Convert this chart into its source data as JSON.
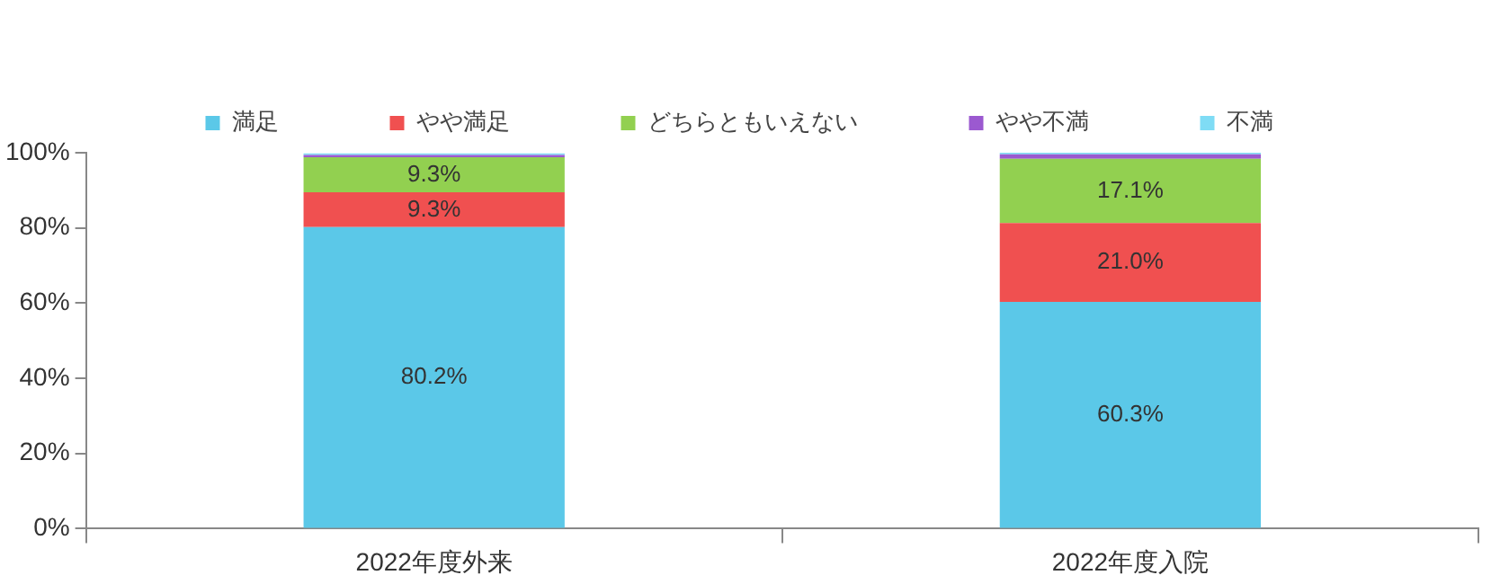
{
  "chart_data": {
    "type": "bar",
    "stacked": true,
    "categories": [
      "2022年度外来",
      "2022年度入院"
    ],
    "series": [
      {
        "name": "満足",
        "color": "#5bc8e8",
        "values": [
          80.2,
          60.3
        ],
        "value_labels": [
          "80.2%",
          "60.3%"
        ]
      },
      {
        "name": "やや満足",
        "color": "#f05050",
        "values": [
          9.3,
          21.0
        ],
        "value_labels": [
          "9.3%",
          "21.0%"
        ]
      },
      {
        "name": "どちらともいえない",
        "color": "#92d050",
        "values": [
          9.3,
          17.1
        ],
        "value_labels": [
          "9.3%",
          "17.1%"
        ]
      },
      {
        "name": "やや不満",
        "color": "#9b59d0",
        "values": [
          0.6,
          1.2
        ]
      },
      {
        "name": "不満",
        "color": "#7fdcf5",
        "values": [
          0.4,
          0.4
        ]
      }
    ],
    "ylim": [
      0,
      100
    ],
    "yticks": [
      {
        "value": 0,
        "label": "0%"
      },
      {
        "value": 20,
        "label": "20%"
      },
      {
        "value": 40,
        "label": "40%"
      },
      {
        "value": 60,
        "label": "60%"
      },
      {
        "value": 80,
        "label": "80%"
      },
      {
        "value": 100,
        "label": "100%"
      }
    ],
    "grid": false,
    "legend": "top"
  }
}
